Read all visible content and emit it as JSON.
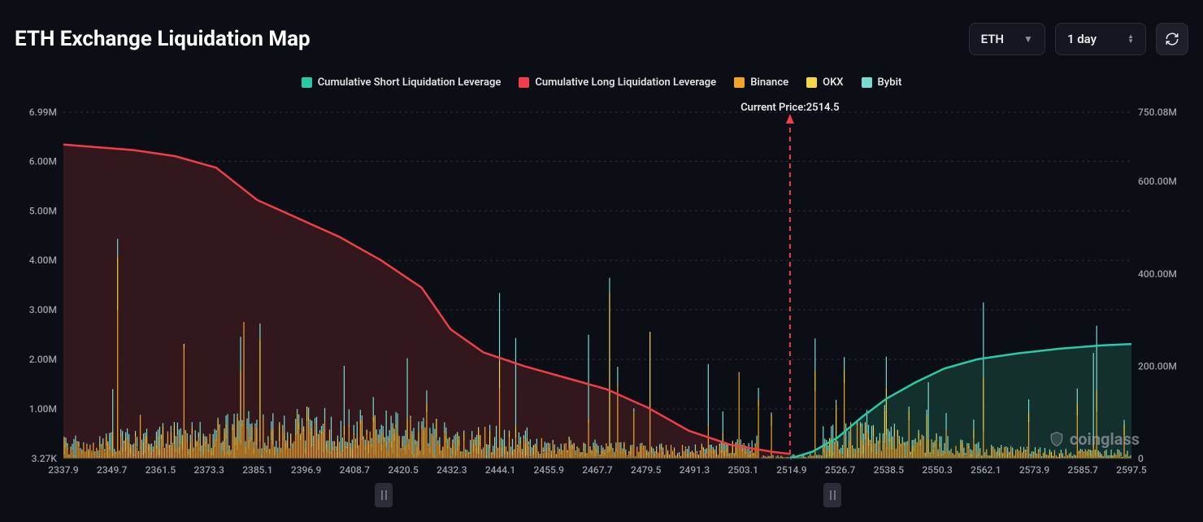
{
  "header": {
    "title": "ETH Exchange Liquidation Map",
    "asset_select": "ETH",
    "range_select": "1 day"
  },
  "legend": {
    "items": [
      {
        "label": "Cumulative Short Liquidation Leverage",
        "color": "#2cc9a7"
      },
      {
        "label": "Cumulative Long Liquidation Leverage",
        "color": "#ef3e4a"
      },
      {
        "label": "Binance",
        "color": "#f0a529"
      },
      {
        "label": "OKX",
        "color": "#f7d54a"
      },
      {
        "label": "Bybit",
        "color": "#7cd9d0"
      }
    ]
  },
  "chart": {
    "type": "bar+area",
    "background_color": "#0b0e14",
    "grid_color": "#2a2e38",
    "axis_font_size": 12,
    "axis_color": "#9aa0a8",
    "x": {
      "min": 2337.9,
      "max": 2597.5,
      "tick_step": 11.8,
      "labels": [
        "2337.9",
        "2349.7",
        "2361.5",
        "2373.3",
        "2385.1",
        "2396.9",
        "2408.7",
        "2420.5",
        "2432.3",
        "2444.1",
        "2455.9",
        "2467.7",
        "2479.5",
        "2491.3",
        "2503.1",
        "2514.9",
        "2526.7",
        "2538.5",
        "2550.3",
        "2562.1",
        "2573.9",
        "2585.7",
        "2597.5"
      ]
    },
    "y_left": {
      "min": 3270,
      "labels": [
        "3.27K",
        "1.00M",
        "2.00M",
        "3.00M",
        "4.00M",
        "5.00M",
        "6.00M",
        "6.99M"
      ],
      "values": [
        3270,
        1000000,
        2000000,
        3000000,
        4000000,
        5000000,
        6000000,
        6990000
      ]
    },
    "y_right": {
      "labels": [
        "0",
        "200.00M",
        "400.00M",
        "600.00M",
        "750.08M"
      ],
      "values": [
        0,
        200000000,
        400000000,
        600000000,
        750080000
      ]
    },
    "current_price": {
      "value": 2514.5,
      "label": "Current Price:2514.5",
      "line_color": "#ef3e4a"
    },
    "long_area_fill": "#3a1a1f",
    "short_area_fill": "#153631",
    "long_line_color": "#ef3e4a",
    "short_line_color": "#2cc9a7",
    "long_curve": [
      [
        2337.9,
        680000000
      ],
      [
        2345,
        675000000
      ],
      [
        2355,
        668000000
      ],
      [
        2365,
        655000000
      ],
      [
        2375,
        630000000
      ],
      [
        2385,
        560000000
      ],
      [
        2395,
        520000000
      ],
      [
        2405,
        480000000
      ],
      [
        2415,
        430000000
      ],
      [
        2425,
        370000000
      ],
      [
        2432,
        280000000
      ],
      [
        2440,
        230000000
      ],
      [
        2450,
        200000000
      ],
      [
        2460,
        175000000
      ],
      [
        2470,
        150000000
      ],
      [
        2480,
        110000000
      ],
      [
        2490,
        60000000
      ],
      [
        2500,
        30000000
      ],
      [
        2510,
        15000000
      ],
      [
        2514.5,
        10000000
      ]
    ],
    "short_curve": [
      [
        2514.5,
        0
      ],
      [
        2520,
        15000000
      ],
      [
        2526,
        45000000
      ],
      [
        2532,
        90000000
      ],
      [
        2538,
        130000000
      ],
      [
        2545,
        165000000
      ],
      [
        2552,
        195000000
      ],
      [
        2560,
        215000000
      ],
      [
        2570,
        228000000
      ],
      [
        2580,
        238000000
      ],
      [
        2590,
        245000000
      ],
      [
        2597.5,
        248000000
      ]
    ],
    "bar_colors": {
      "binance": "#f0a529",
      "okx": "#f7d54a",
      "bybit": "#7cd9d0"
    },
    "bar_width": 1.2,
    "bars_seed": 20240601,
    "bars_density": 660,
    "watermark": "coinglass"
  },
  "slider": {
    "left_pos": 0.3,
    "right_pos": 0.72
  }
}
